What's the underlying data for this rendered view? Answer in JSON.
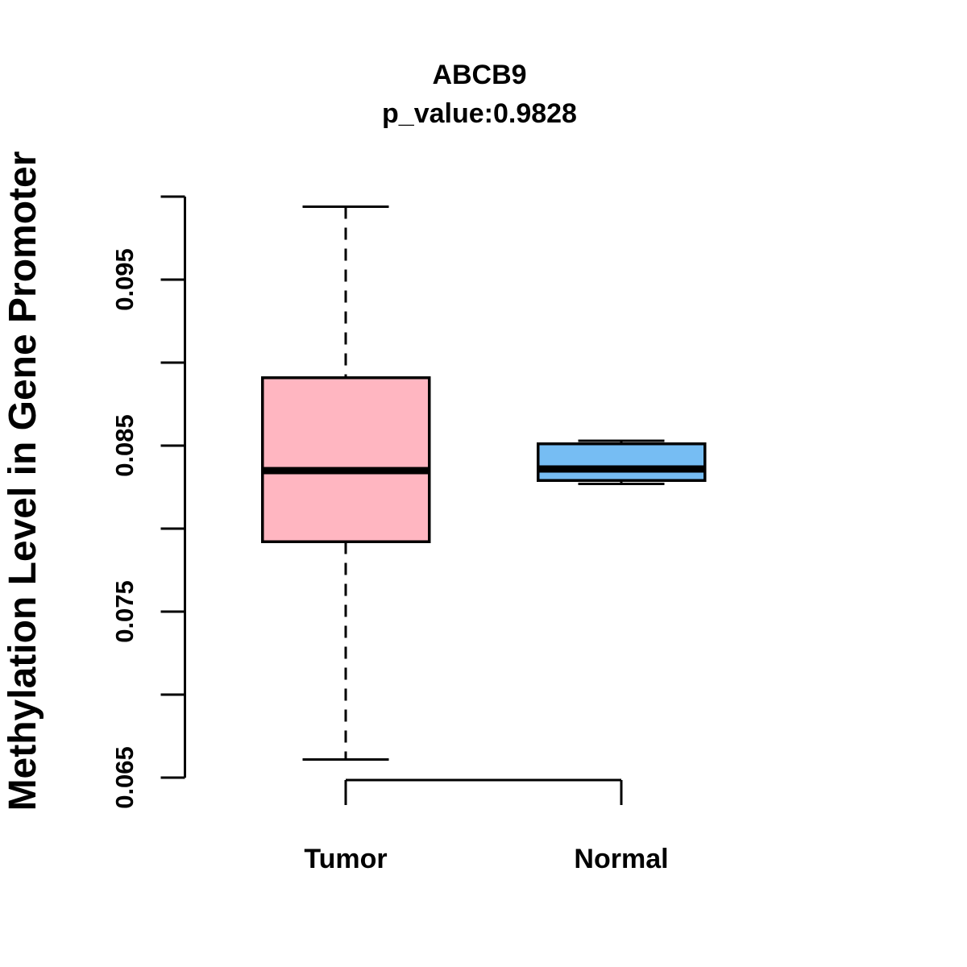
{
  "figure": {
    "background": "#FFFFFF",
    "axis_color": "#000000",
    "text_color": "#000000"
  },
  "chart_data": {
    "type": "boxplot",
    "title": "ABCB9",
    "subtitle": "p_value:0.9828",
    "ylabel": "Methylation Level in Gene Promoter",
    "xlabel": "",
    "ylim": [
      0.065,
      0.1
    ],
    "grid": false,
    "legend": "none",
    "yticks": [
      {
        "value": 0.1,
        "label": ""
      },
      {
        "value": 0.095,
        "label": "0.095"
      },
      {
        "value": 0.09,
        "label": ""
      },
      {
        "value": 0.085,
        "label": "0.085"
      },
      {
        "value": 0.08,
        "label": ""
      },
      {
        "value": 0.075,
        "label": "0.075"
      },
      {
        "value": 0.07,
        "label": ""
      },
      {
        "value": 0.065,
        "label": "0.065"
      }
    ],
    "categories": [
      "Tumor",
      "Normal"
    ],
    "series": [
      {
        "name": "Tumor",
        "box_color": "#FFB6C1",
        "border_color": "#000000",
        "whisker_low": 0.0661,
        "q1": 0.0792,
        "median": 0.0835,
        "q3": 0.0891,
        "whisker_high": 0.0994
      },
      {
        "name": "Normal",
        "box_color": "#76BDF3",
        "border_color": "#000000",
        "whisker_low": 0.0827,
        "q1": 0.0829,
        "median": 0.0836,
        "q3": 0.0851,
        "whisker_high": 0.0853
      }
    ]
  }
}
